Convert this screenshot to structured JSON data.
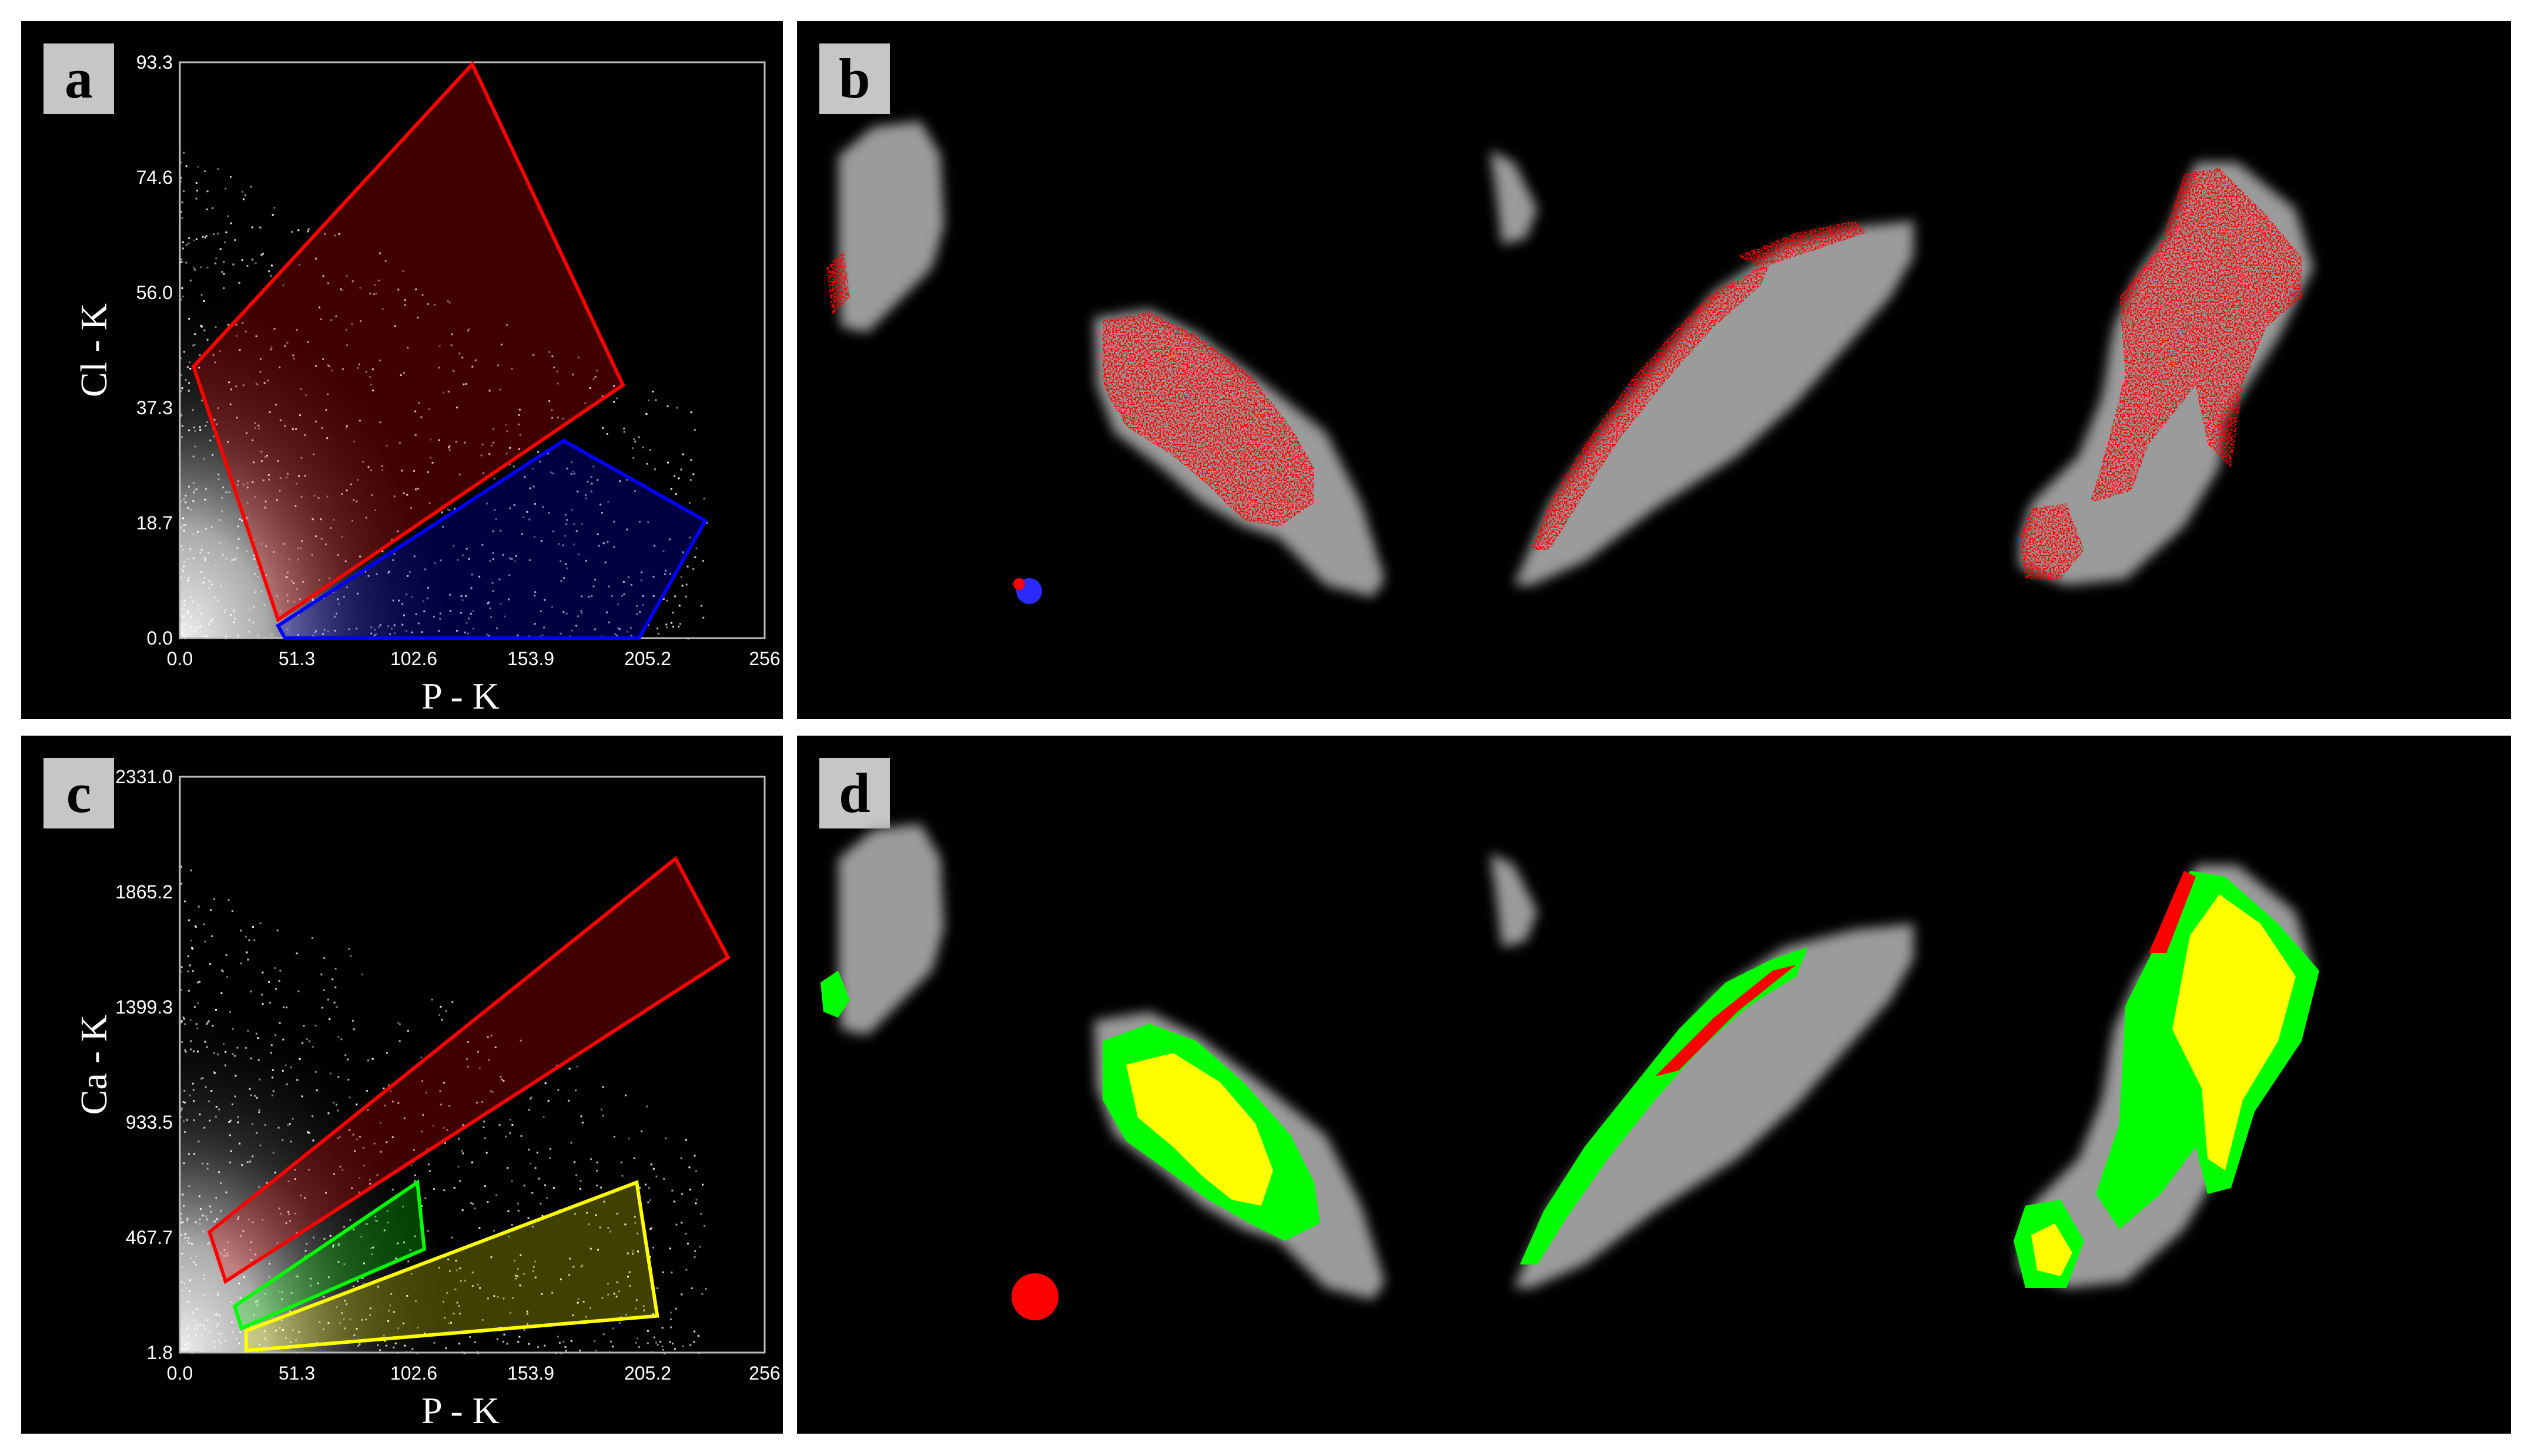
{
  "panels": {
    "a": "a",
    "b": "b",
    "c": "c",
    "d": "d"
  },
  "colors": {
    "red": "#ff0000",
    "blue": "#0000ff",
    "green": "#00ff00",
    "yellow": "#ffff00",
    "gray": "#a8a8a8"
  },
  "chart_data": [
    {
      "id": "a",
      "type": "scatter",
      "title": "",
      "xlabel": "P - K",
      "ylabel": "Cl - K",
      "xlim": [
        0,
        256
      ],
      "ylim": [
        0,
        93.3
      ],
      "xticks": [
        "0.0",
        "51.3",
        "102.6",
        "153.9",
        "205.2",
        "256"
      ],
      "yticks": [
        "0.0",
        "18.7",
        "37.3",
        "56.0",
        "74.6",
        "93.3"
      ],
      "regions": [
        {
          "color": "red",
          "polygon": [
            [
              6,
              44
            ],
            [
              128,
              93
            ],
            [
              194,
              41
            ],
            [
              43,
              3
            ]
          ]
        },
        {
          "color": "blue",
          "polygon": [
            [
              43,
              2
            ],
            [
              168,
              32
            ],
            [
              230,
              19
            ],
            [
              201,
              0
            ],
            [
              46,
              0
            ]
          ]
        }
      ]
    },
    {
      "id": "c",
      "type": "scatter",
      "title": "",
      "xlabel": "P - K",
      "ylabel": "Ca - K",
      "xlim": [
        0,
        256
      ],
      "ylim": [
        1.8,
        2331.0
      ],
      "xticks": [
        "0.0",
        "51.3",
        "102.6",
        "153.9",
        "205.2",
        "256"
      ],
      "yticks": [
        "1.8",
        "467.7",
        "933.5",
        "1399.3",
        "1865.2",
        "2331.0"
      ],
      "regions": [
        {
          "color": "red",
          "polygon": [
            [
              13,
              490
            ],
            [
              217,
              2000
            ],
            [
              240,
              1600
            ],
            [
              20,
              290
            ]
          ]
        },
        {
          "color": "green",
          "polygon": [
            [
              24,
              190
            ],
            [
              104,
              690
            ],
            [
              107,
              420
            ],
            [
              27,
              100
            ]
          ]
        },
        {
          "color": "yellow",
          "polygon": [
            [
              29,
              90
            ],
            [
              200,
              690
            ],
            [
              209,
              150
            ],
            [
              29,
              10
            ]
          ]
        }
      ]
    }
  ]
}
